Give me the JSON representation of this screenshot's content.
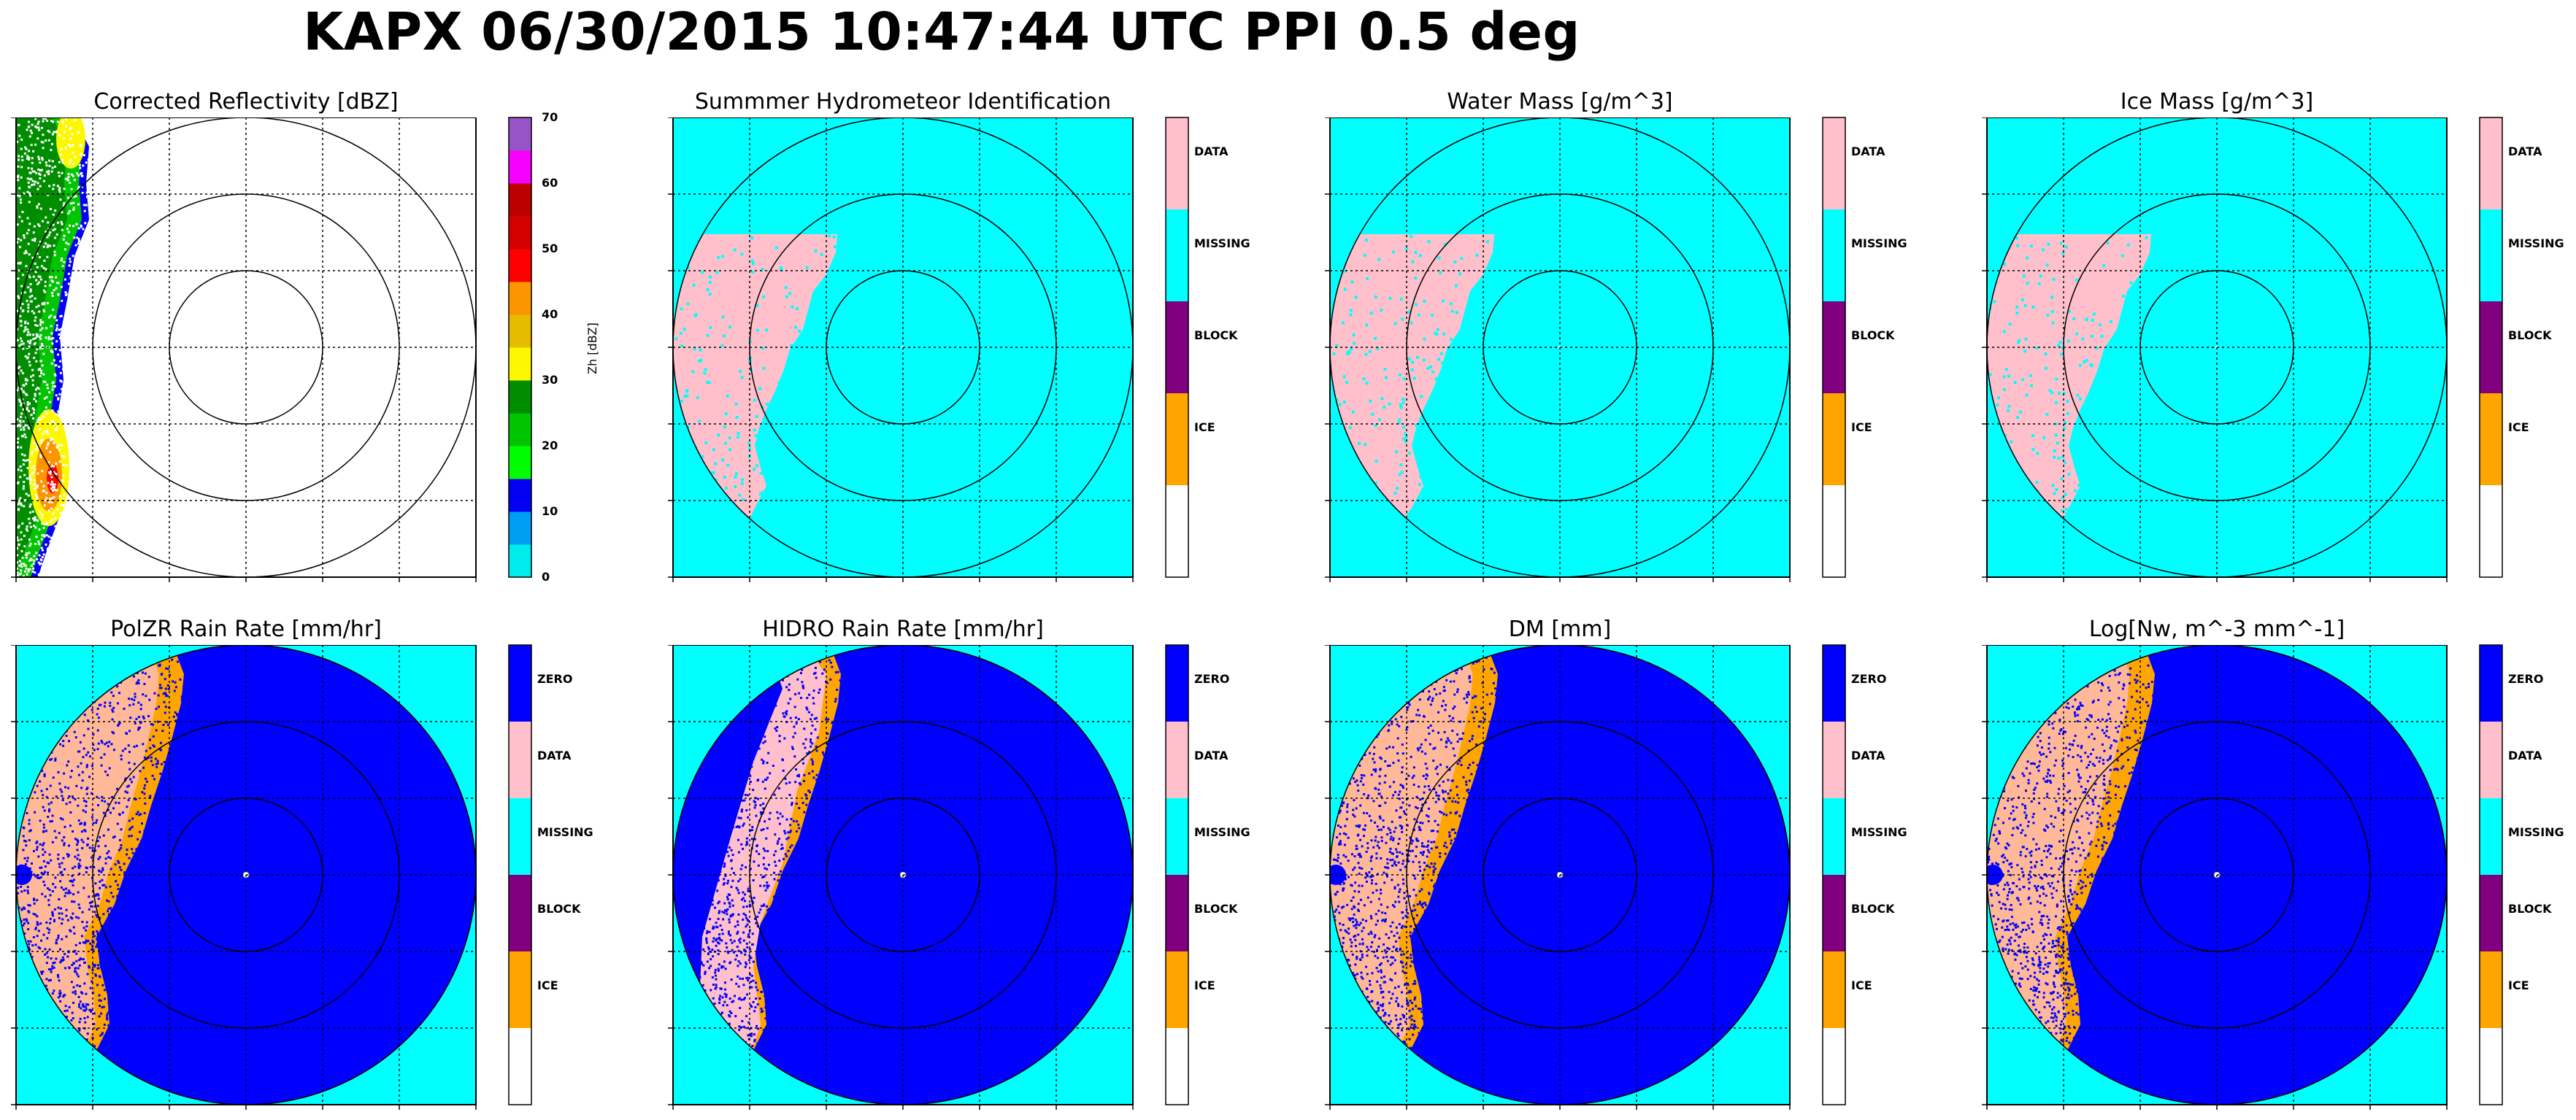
{
  "suptitle": "KAPX 06/30/2015 10:47:44 UTC PPI 0.5 deg",
  "colors": {
    "cyan": "#00ffff",
    "blue": "#0000ff",
    "pink": "#ffc0cb",
    "orange": "#ffa500",
    "purple": "#800080",
    "white": "#ffffff",
    "dbz": [
      "#00ecec",
      "#019ff4",
      "#0300f4",
      "#02fd02",
      "#01c501",
      "#008e00",
      "#fdf802",
      "#e5bc00",
      "#fd9500",
      "#fd0000",
      "#d40000",
      "#bc0000",
      "#f800fd",
      "#9854c6"
    ]
  },
  "chart_data": [
    {
      "type": "heatmap",
      "title": "Corrected Reflectivity [dBZ]",
      "colorbar": {
        "label": "Zh [dBZ]",
        "ticks": [
          "0",
          "10",
          "20",
          "30",
          "40",
          "50",
          "60",
          "70"
        ],
        "range": [
          0,
          70
        ],
        "step": 5
      },
      "background": "white",
      "range_rings": 3,
      "grid": true
    },
    {
      "type": "heatmap",
      "title": "Summmer Hydrometeor Identification",
      "colorbar": {
        "categories": [
          "DATA",
          "MISSING",
          "BLOCK",
          "ICE"
        ]
      },
      "background": "MISSING",
      "range_rings": 3,
      "grid": true
    },
    {
      "type": "heatmap",
      "title": "Water Mass [g/m^3]",
      "colorbar": {
        "categories": [
          "DATA",
          "MISSING",
          "BLOCK",
          "ICE"
        ]
      },
      "background": "MISSING",
      "range_rings": 3,
      "grid": true
    },
    {
      "type": "heatmap",
      "title": "Ice Mass [g/m^3]",
      "colorbar": {
        "categories": [
          "DATA",
          "MISSING",
          "BLOCK",
          "ICE"
        ]
      },
      "background": "MISSING",
      "range_rings": 3,
      "grid": true
    },
    {
      "type": "heatmap",
      "title": "PolZR Rain Rate [mm/hr]",
      "colorbar": {
        "categories": [
          "ZERO",
          "DATA",
          "MISSING",
          "BLOCK",
          "ICE"
        ]
      },
      "background": "MISSING",
      "range_rings": 3,
      "grid": true
    },
    {
      "type": "heatmap",
      "title": "HIDRO Rain Rate [mm/hr]",
      "colorbar": {
        "categories": [
          "ZERO",
          "DATA",
          "MISSING",
          "BLOCK",
          "ICE"
        ]
      },
      "background": "MISSING",
      "range_rings": 3,
      "grid": true
    },
    {
      "type": "heatmap",
      "title": "DM [mm]",
      "colorbar": {
        "categories": [
          "ZERO",
          "DATA",
          "MISSING",
          "BLOCK",
          "ICE"
        ]
      },
      "background": "MISSING",
      "range_rings": 3,
      "grid": true
    },
    {
      "type": "heatmap",
      "title": "Log[Nw, m^-3 mm^-1]",
      "colorbar": {
        "categories": [
          "ZERO",
          "DATA",
          "MISSING",
          "BLOCK",
          "ICE"
        ]
      },
      "background": "MISSING",
      "range_rings": 3,
      "grid": true
    }
  ]
}
